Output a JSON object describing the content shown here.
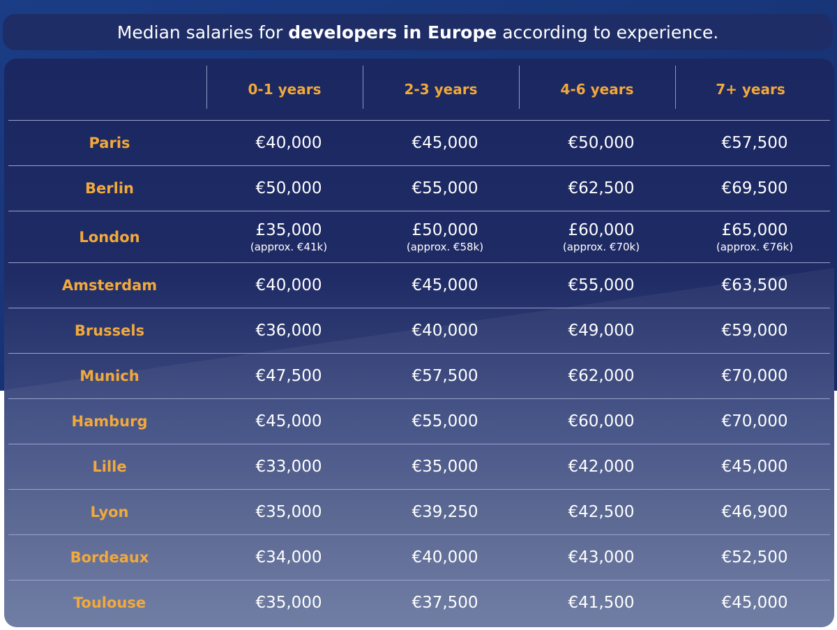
{
  "title": {
    "prefix": "Median salaries for",
    "bold": "developers in Europe",
    "suffix": "according to experience."
  },
  "chart_data": {
    "type": "table",
    "title": "Median salaries for developers in Europe according to experience.",
    "columns": [
      "0-1 years",
      "2-3 years",
      "4-6 years",
      "7+ years"
    ],
    "rows": [
      {
        "city": "Paris",
        "values": [
          "€40,000",
          "€45,000",
          "€50,000",
          "€57,500"
        ]
      },
      {
        "city": "Berlin",
        "values": [
          "€50,000",
          "€55,000",
          "€62,500",
          "€69,500"
        ]
      },
      {
        "city": "London",
        "values": [
          "£35,000",
          "£50,000",
          "£60,000",
          "£65,000"
        ],
        "approx": [
          "(approx. €41k)",
          "(approx. €58k)",
          "(approx. €70k)",
          "(approx. €76k)"
        ]
      },
      {
        "city": "Amsterdam",
        "values": [
          "€40,000",
          "€45,000",
          "€55,000",
          "€63,500"
        ]
      },
      {
        "city": "Brussels",
        "values": [
          "€36,000",
          "€40,000",
          "€49,000",
          "€59,000"
        ]
      },
      {
        "city": "Munich",
        "values": [
          "€47,500",
          "€57,500",
          "€62,000",
          "€70,000"
        ]
      },
      {
        "city": "Hamburg",
        "values": [
          "€45,000",
          "€55,000",
          "€60,000",
          "€70,000"
        ]
      },
      {
        "city": "Lille",
        "values": [
          "€33,000",
          "€35,000",
          "€42,000",
          "€45,000"
        ]
      },
      {
        "city": "Lyon",
        "values": [
          "€35,000",
          "€39,250",
          "€42,500",
          "€46,900"
        ]
      },
      {
        "city": "Bordeaux",
        "values": [
          "€34,000",
          "€40,000",
          "€43,000",
          "€52,500"
        ]
      },
      {
        "city": "Toulouse",
        "values": [
          "€35,000",
          "€37,500",
          "€41,500",
          "€45,000"
        ]
      }
    ]
  },
  "colors": {
    "accent": "#f2a93b",
    "text": "#ffffff",
    "title_bg": "#1e2d66",
    "background": "#173273"
  }
}
